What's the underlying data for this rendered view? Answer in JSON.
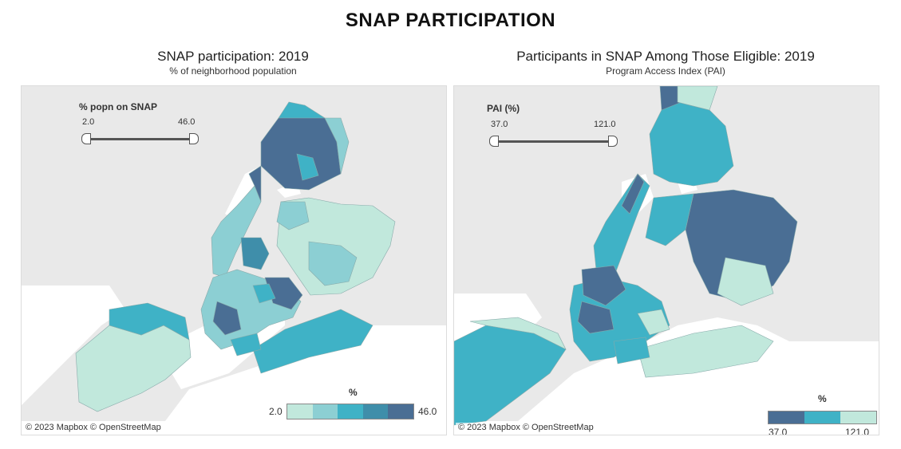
{
  "dashboard": {
    "title": "SNAP PARTICIPATION"
  },
  "colors": {
    "scale": [
      "#c1e8dc",
      "#8ccfd3",
      "#3fb2c6",
      "#3f8eaa",
      "#4a6e94"
    ],
    "water": "#ffffff",
    "land": "#dedede"
  },
  "left_panel": {
    "title": "SNAP participation: 2019",
    "subtitle": "% of neighborhood population",
    "filter": {
      "label": "% popn on SNAP",
      "min": "2.0",
      "max": "46.0"
    },
    "legend": {
      "title": "%",
      "min": "2.0",
      "max": "46.0"
    },
    "attribution": "© 2023 Mapbox  © OpenStreetMap"
  },
  "right_panel": {
    "title": "Participants in SNAP Among Those Eligible: 2019",
    "subtitle": "Program Access Index (PAI)",
    "filter": {
      "label": "PAI (%)",
      "min": "37.0",
      "max": "121.0"
    },
    "legend": {
      "title": "%",
      "min": "37.0",
      "max": "121.0"
    },
    "attribution": "© 2023 Mapbox  © OpenStreetMap"
  }
}
